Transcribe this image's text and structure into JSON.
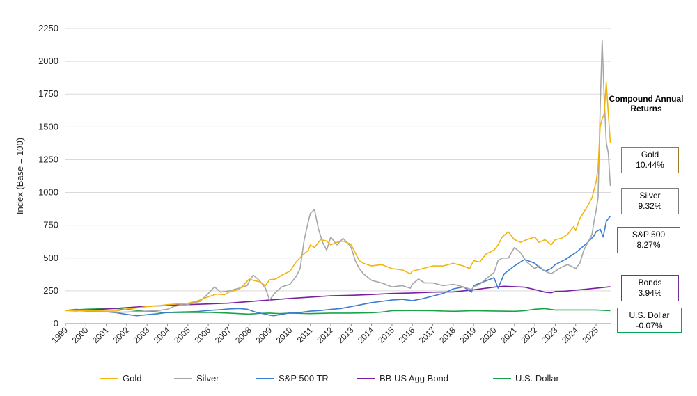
{
  "chart_data": {
    "type": "line",
    "title": "",
    "ylabel": "Index (Base = 100)",
    "xlabel": "",
    "ylim": [
      0,
      2250
    ],
    "yticks": [
      0,
      250,
      500,
      750,
      1000,
      1250,
      1500,
      1750,
      2000,
      2250
    ],
    "xlim": [
      1999,
      2025.75
    ],
    "xticks": [
      "1999",
      "2000",
      "2001",
      "2002",
      "2003",
      "2004",
      "2005",
      "2006",
      "2007",
      "2008",
      "2009",
      "2010",
      "2011",
      "2012",
      "2013",
      "2014",
      "2015",
      "2016",
      "2017",
      "2018",
      "2019",
      "2020",
      "2021",
      "2022",
      "2023",
      "2024",
      "2025"
    ],
    "grid": true,
    "legend_position": "bottom",
    "series": [
      {
        "name": "Gold",
        "color": "#f2b50f",
        "x": [
          1999,
          1999.5,
          2000,
          2000.5,
          2001,
          2001.5,
          2002,
          2002.5,
          2003,
          2003.5,
          2004,
          2004.5,
          2005,
          2005.5,
          2006,
          2006.4,
          2006.8,
          2007,
          2007.5,
          2007.8,
          2008,
          2008.2,
          2008.5,
          2008.8,
          2009,
          2009.3,
          2009.6,
          2010,
          2010.3,
          2010.6,
          2010.9,
          2011,
          2011.2,
          2011.5,
          2011.8,
          2012,
          2012.3,
          2012.6,
          2012.9,
          2013,
          2013.2,
          2013.4,
          2013.6,
          2014,
          2014.5,
          2015,
          2015.5,
          2015.9,
          2016,
          2016.5,
          2017,
          2017.5,
          2018,
          2018.5,
          2018.8,
          2019,
          2019.3,
          2019.6,
          2020,
          2020.2,
          2020.4,
          2020.7,
          2021,
          2021.3,
          2021.6,
          2022,
          2022.2,
          2022.5,
          2022.8,
          2023,
          2023.3,
          2023.6,
          2023.9,
          2024,
          2024.2,
          2024.4,
          2024.6,
          2024.8,
          2025,
          2025.1,
          2025.2,
          2025.3,
          2025.4,
          2025.5,
          2025.6,
          2025.7
        ],
        "values": [
          100,
          95,
          100,
          98,
          95,
          96,
          112,
          120,
          130,
          135,
          145,
          150,
          155,
          175,
          205,
          225,
          220,
          240,
          260,
          305,
          340,
          330,
          320,
          290,
          335,
          340,
          370,
          400,
          470,
          520,
          560,
          600,
          580,
          640,
          630,
          600,
          620,
          630,
          610,
          600,
          540,
          480,
          460,
          440,
          450,
          420,
          410,
          380,
          400,
          420,
          440,
          440,
          460,
          440,
          420,
          480,
          470,
          530,
          560,
          600,
          660,
          700,
          640,
          620,
          640,
          660,
          620,
          640,
          600,
          640,
          650,
          680,
          740,
          710,
          800,
          850,
          900,
          960,
          1080,
          1190,
          1500,
          1560,
          1600,
          1840,
          1600,
          1380
        ]
      },
      {
        "name": "Silver",
        "color": "#a6a6a6",
        "x": [
          1999,
          1999.5,
          2000,
          2000.5,
          2001,
          2001.5,
          2002,
          2002.5,
          2003,
          2003.5,
          2004,
          2004.3,
          2004.6,
          2005,
          2005.3,
          2005.6,
          2006,
          2006.3,
          2006.6,
          2007,
          2007.5,
          2007.9,
          2008,
          2008.2,
          2008.5,
          2008.8,
          2009,
          2009.3,
          2009.6,
          2010,
          2010.3,
          2010.5,
          2010.7,
          2010.9,
          2011,
          2011.2,
          2011.4,
          2011.6,
          2011.8,
          2012,
          2012.3,
          2012.6,
          2012.9,
          2013,
          2013.2,
          2013.4,
          2013.6,
          2014,
          2014.5,
          2015,
          2015.5,
          2015.9,
          2016,
          2016.3,
          2016.6,
          2017,
          2017.5,
          2018,
          2018.5,
          2018.9,
          2019,
          2019.3,
          2019.6,
          2020,
          2020.2,
          2020.4,
          2020.7,
          2021,
          2021.3,
          2021.6,
          2022,
          2022.2,
          2022.5,
          2022.8,
          2023,
          2023.3,
          2023.6,
          2023.9,
          2024,
          2024.2,
          2024.4,
          2024.6,
          2024.8,
          2024.9,
          2025,
          2025.1,
          2025.2,
          2025.3,
          2025.4,
          2025.5,
          2025.6,
          2025.7
        ],
        "values": [
          100,
          98,
          95,
          92,
          90,
          86,
          88,
          92,
          95,
          98,
          110,
          130,
          140,
          145,
          160,
          170,
          230,
          280,
          240,
          250,
          270,
          290,
          320,
          370,
          330,
          270,
          180,
          240,
          280,
          300,
          360,
          420,
          640,
          780,
          840,
          870,
          720,
          620,
          560,
          660,
          600,
          650,
          600,
          580,
          480,
          420,
          380,
          330,
          310,
          280,
          290,
          270,
          300,
          340,
          310,
          310,
          290,
          300,
          280,
          260,
          280,
          300,
          340,
          390,
          480,
          500,
          500,
          580,
          540,
          470,
          420,
          440,
          400,
          380,
          400,
          430,
          450,
          430,
          420,
          460,
          560,
          620,
          680,
          780,
          860,
          960,
          1640,
          2160,
          1720,
          1380,
          1300,
          1050
        ]
      },
      {
        "name": "S&P 500 TR",
        "color": "#3a7dd1",
        "x": [
          1999,
          1999.5,
          2000,
          2000.5,
          2001,
          2001.5,
          2002,
          2002.5,
          2003,
          2003.5,
          2004,
          2004.5,
          2005,
          2005.5,
          2006,
          2006.5,
          2007,
          2007.5,
          2007.9,
          2008.3,
          2008.7,
          2009,
          2009.2,
          2009.6,
          2010,
          2010.5,
          2011,
          2011.5,
          2012,
          2012.5,
          2013,
          2013.5,
          2014,
          2014.5,
          2015,
          2015.5,
          2016,
          2016.5,
          2017,
          2017.5,
          2018,
          2018.5,
          2018.9,
          2019,
          2019.5,
          2020,
          2020.2,
          2020.5,
          2021,
          2021.5,
          2022,
          2022.2,
          2022.5,
          2022.8,
          2023,
          2023.5,
          2024,
          2024.3,
          2024.6,
          2024.9,
          2025,
          2025.2,
          2025.35,
          2025.5,
          2025.7
        ],
        "values": [
          100,
          108,
          105,
          98,
          90,
          82,
          70,
          60,
          68,
          75,
          85,
          88,
          90,
          93,
          100,
          105,
          112,
          115,
          110,
          88,
          75,
          65,
          60,
          70,
          82,
          85,
          95,
          100,
          108,
          115,
          130,
          145,
          160,
          170,
          180,
          185,
          175,
          190,
          210,
          230,
          265,
          280,
          240,
          290,
          320,
          350,
          270,
          380,
          440,
          490,
          460,
          430,
          400,
          420,
          450,
          490,
          540,
          580,
          620,
          670,
          700,
          720,
          660,
          780,
          820
        ]
      },
      {
        "name": "BB US Agg Bond",
        "color": "#7a1fa2",
        "x": [
          1999,
          2000,
          2001,
          2002,
          2003,
          2004,
          2005,
          2006,
          2007,
          2008,
          2009,
          2010,
          2011,
          2012,
          2013,
          2014,
          2015,
          2016,
          2017,
          2018,
          2019,
          2020,
          2020.5,
          2021,
          2021.5,
          2022,
          2022.5,
          2022.8,
          2023,
          2023.5,
          2024,
          2024.5,
          2025,
          2025.5,
          2025.7
        ],
        "values": [
          100,
          102,
          112,
          122,
          132,
          138,
          145,
          150,
          156,
          168,
          180,
          192,
          202,
          212,
          216,
          222,
          230,
          234,
          240,
          242,
          258,
          278,
          285,
          282,
          278,
          260,
          240,
          235,
          245,
          248,
          255,
          262,
          270,
          278,
          282
        ]
      },
      {
        "name": "U.S. Dollar",
        "color": "#1aa24a",
        "x": [
          1999,
          1999.5,
          2000,
          2000.5,
          2001,
          2001.5,
          2002,
          2002.5,
          2003,
          2003.5,
          2004,
          2005,
          2006,
          2007,
          2008,
          2008.5,
          2009,
          2009.5,
          2010,
          2011,
          2012,
          2013,
          2014,
          2014.5,
          2015,
          2016,
          2017,
          2018,
          2019,
          2020,
          2021,
          2021.5,
          2022,
          2022.5,
          2023,
          2024,
          2025,
          2025.7
        ],
        "values": [
          100,
          105,
          110,
          112,
          115,
          114,
          108,
          100,
          92,
          88,
          84,
          85,
          86,
          80,
          72,
          78,
          80,
          76,
          80,
          76,
          80,
          80,
          82,
          88,
          98,
          100,
          98,
          94,
          98,
          96,
          94,
          98,
          110,
          114,
          104,
          104,
          104,
          98
        ]
      }
    ]
  },
  "annotation_title": "Compound Annual Returns",
  "cagr_boxes": [
    {
      "label": "Gold",
      "value": "10.44%",
      "border": "#9b7d24"
    },
    {
      "label": "Silver",
      "value": "9.32%",
      "border": "#7f7f7f"
    },
    {
      "label": "S&P 500",
      "value": "8.27%",
      "border": "#2e75b6"
    },
    {
      "label": "Bonds",
      "value": "3.94%",
      "border": "#7030a0"
    },
    {
      "label": "U.S. Dollar",
      "value": "-0.07%",
      "border": "#00a651"
    }
  ],
  "legend": [
    {
      "label": "Gold",
      "color": "#f2b50f"
    },
    {
      "label": "Silver",
      "color": "#a6a6a6"
    },
    {
      "label": "S&P 500 TR",
      "color": "#3a7dd1"
    },
    {
      "label": "BB US Agg Bond",
      "color": "#7a1fa2"
    },
    {
      "label": "U.S. Dollar",
      "color": "#1aa24a"
    }
  ]
}
